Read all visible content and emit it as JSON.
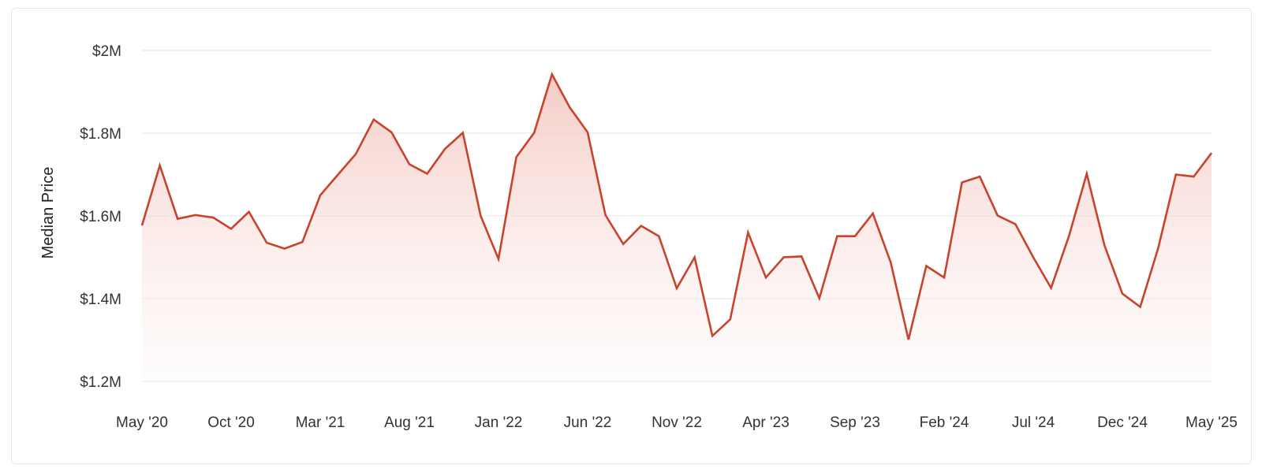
{
  "chart_data": {
    "type": "area",
    "title": "",
    "xlabel": "",
    "ylabel": "Median Price",
    "ylim": [
      1200000,
      2000000
    ],
    "yticks": [
      {
        "value": 2000000,
        "label": "$2M"
      },
      {
        "value": 1800000,
        "label": "$1.8M"
      },
      {
        "value": 1600000,
        "label": "$1.6M"
      },
      {
        "value": 1400000,
        "label": "$1.4M"
      },
      {
        "value": 1200000,
        "label": "$1.2M"
      }
    ],
    "xticks": [
      {
        "index": 0,
        "label": "May '20"
      },
      {
        "index": 5,
        "label": "Oct '20"
      },
      {
        "index": 10,
        "label": "Mar '21"
      },
      {
        "index": 15,
        "label": "Aug '21"
      },
      {
        "index": 20,
        "label": "Jan '22"
      },
      {
        "index": 25,
        "label": "Jun '22"
      },
      {
        "index": 30,
        "label": "Nov '22"
      },
      {
        "index": 35,
        "label": "Apr '23"
      },
      {
        "index": 40,
        "label": "Sep '23"
      },
      {
        "index": 45,
        "label": "Feb '24"
      },
      {
        "index": 50,
        "label": "Jul '24"
      },
      {
        "index": 55,
        "label": "Dec '24"
      },
      {
        "index": 60,
        "label": "May '25"
      }
    ],
    "grid": true,
    "legend": "none",
    "colors": {
      "line": "#c8432b",
      "fill_top": "#f3c2bb",
      "fill_bottom": "#fdf3f2",
      "grid": "#e6e6e6"
    },
    "series": [
      {
        "x": [
          "2020-05",
          "2020-06",
          "2020-07",
          "2020-08",
          "2020-09",
          "2020-10",
          "2020-11",
          "2020-12",
          "2021-01",
          "2021-02",
          "2021-03",
          "2021-04",
          "2021-05",
          "2021-06",
          "2021-07",
          "2021-08",
          "2021-09",
          "2021-10",
          "2021-11",
          "2021-12",
          "2022-01",
          "2022-02",
          "2022-03",
          "2022-04",
          "2022-05",
          "2022-06",
          "2022-07",
          "2022-08",
          "2022-09",
          "2022-10",
          "2022-11",
          "2022-12",
          "2023-01",
          "2023-02",
          "2023-03",
          "2023-04",
          "2023-05",
          "2023-06",
          "2023-07",
          "2023-08",
          "2023-09",
          "2023-10",
          "2023-11",
          "2023-12",
          "2024-01",
          "2024-02",
          "2024-03",
          "2024-04",
          "2024-05",
          "2024-06",
          "2024-07",
          "2024-08",
          "2024-09",
          "2024-10",
          "2024-11",
          "2024-12",
          "2025-01",
          "2025-02",
          "2025-03",
          "2025-04",
          "2025-05"
        ],
        "values": [
          1577000,
          1722000,
          1593000,
          1602000,
          1596000,
          1569000,
          1610000,
          1535000,
          1521000,
          1537000,
          1650000,
          1700000,
          1750000,
          1833000,
          1802000,
          1725000,
          1702000,
          1762000,
          1801000,
          1600000,
          1496000,
          1742000,
          1801000,
          1942000,
          1862000,
          1802000,
          1602000,
          1532000,
          1576000,
          1551000,
          1425000,
          1500000,
          1310000,
          1350000,
          1560000,
          1451000,
          1500000,
          1502000,
          1401000,
          1551000,
          1551000,
          1606000,
          1488000,
          1301000,
          1479000,
          1451000,
          1681000,
          1695000,
          1601000,
          1580000,
          1500000,
          1426000,
          1551000,
          1702000,
          1528000,
          1412000,
          1380000,
          1521000,
          1700000,
          1695000,
          1752000
        ]
      }
    ]
  }
}
